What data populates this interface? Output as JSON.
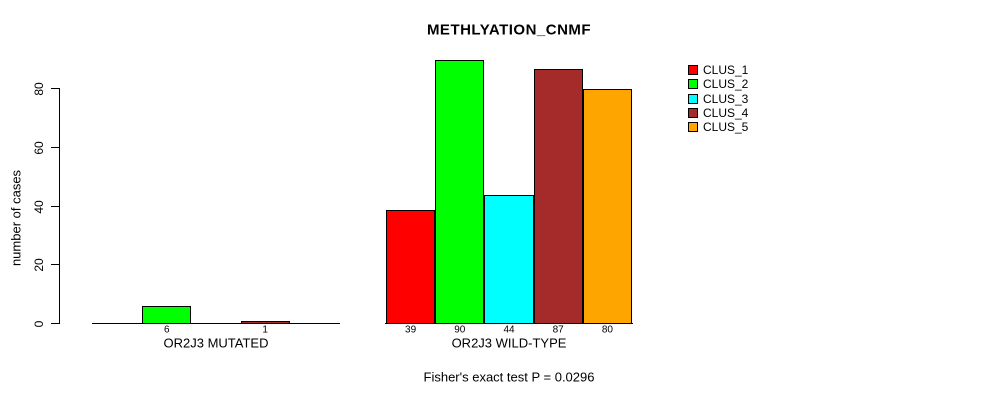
{
  "title": "METHLYATION_CNMF",
  "y_axis": {
    "label": "number of cases",
    "ticks": [
      0,
      20,
      40,
      60,
      80
    ]
  },
  "footer": "Fisher's exact test P = 0.0296",
  "legend": {
    "items": [
      {
        "label": "CLUS_1",
        "color": "#FF0000"
      },
      {
        "label": "CLUS_2",
        "color": "#00FF00"
      },
      {
        "label": "CLUS_3",
        "color": "#00FFFF"
      },
      {
        "label": "CLUS_4",
        "color": "#A52A2A"
      },
      {
        "label": "CLUS_5",
        "color": "#FFA500"
      }
    ]
  },
  "chart_data": {
    "type": "bar",
    "title": "METHLYATION_CNMF",
    "ylabel": "number of cases",
    "ylim": [
      0,
      92
    ],
    "yticks": [
      0,
      20,
      40,
      60,
      80
    ],
    "grid": false,
    "legend_position": "top-right",
    "categories": [
      "OR2J3 MUTATED",
      "OR2J3 WILD-TYPE"
    ],
    "series": [
      {
        "name": "CLUS_1",
        "color": "#FF0000",
        "values": [
          0,
          39
        ]
      },
      {
        "name": "CLUS_2",
        "color": "#00FF00",
        "values": [
          6,
          90
        ]
      },
      {
        "name": "CLUS_3",
        "color": "#00FFFF",
        "values": [
          0,
          44
        ]
      },
      {
        "name": "CLUS_4",
        "color": "#A52A2A",
        "values": [
          1,
          87
        ]
      },
      {
        "name": "CLUS_5",
        "color": "#FFA500",
        "values": [
          0,
          80
        ]
      }
    ],
    "bar_labels_shown": [
      [
        "6",
        "1"
      ],
      [
        "39",
        "90",
        "44",
        "87",
        "80"
      ]
    ],
    "annotation": "Fisher's exact test P = 0.0296"
  }
}
